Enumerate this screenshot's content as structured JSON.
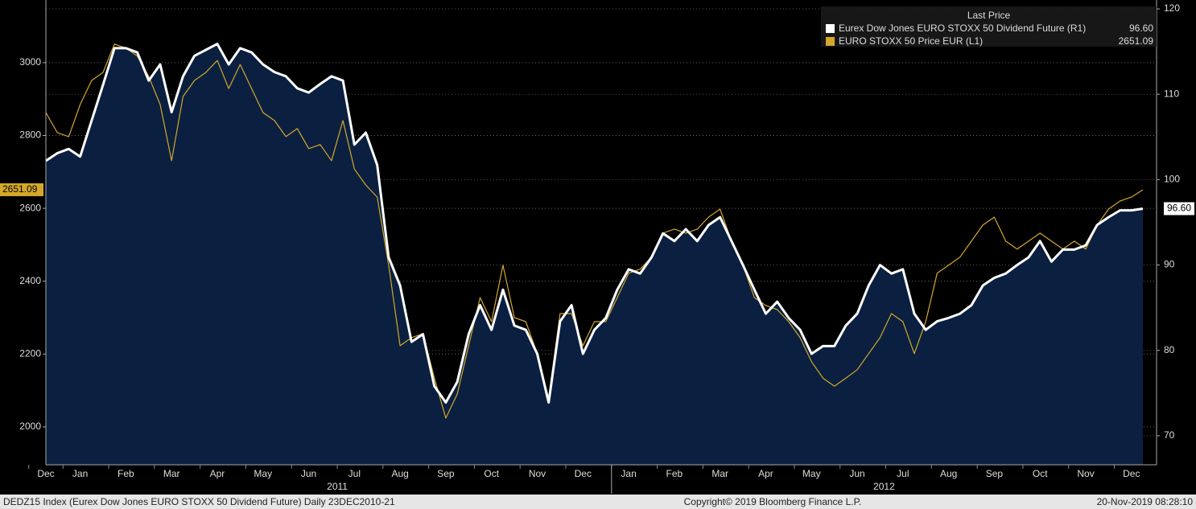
{
  "chart_data": {
    "type": "line",
    "legend_title": "Last Price",
    "legend_position": "top-right",
    "area_fill": "#0b2040",
    "categories": [
      "Dec",
      null,
      null,
      "Jan",
      null,
      null,
      null,
      "Feb",
      null,
      null,
      null,
      "Mar",
      null,
      null,
      null,
      "Apr",
      null,
      null,
      null,
      "May",
      null,
      null,
      null,
      "Jun",
      null,
      null,
      null,
      "Jul",
      null,
      null,
      null,
      "Aug",
      null,
      null,
      null,
      "Sep",
      null,
      null,
      null,
      "Oct",
      null,
      null,
      null,
      "Nov",
      null,
      null,
      null,
      "Dec",
      null,
      null,
      null,
      "Jan",
      null,
      null,
      null,
      "Feb",
      null,
      null,
      null,
      "Mar",
      null,
      null,
      null,
      "Apr",
      null,
      null,
      null,
      "May",
      null,
      null,
      null,
      "Jun",
      null,
      null,
      null,
      "Jul",
      null,
      null,
      null,
      "Aug",
      null,
      null,
      null,
      "Sep",
      null,
      null,
      null,
      "Oct",
      null,
      null,
      null,
      "Nov",
      null,
      null,
      null,
      "Dec",
      null
    ],
    "year_labels": [
      "2011",
      "2012"
    ],
    "series": [
      {
        "name": "Eurex Dow Jones EURO STOXX 50 Dividend Future  (R1)",
        "color": "#ffffff",
        "axis": "y2",
        "area": true,
        "values": [
          102.2,
          103.1,
          103.6,
          102.7,
          106.9,
          111.1,
          115.4,
          115.4,
          114.9,
          111.6,
          113.5,
          107.9,
          112.1,
          114.5,
          115.2,
          115.9,
          113.5,
          115.4,
          114.9,
          113.5,
          112.6,
          112.1,
          110.7,
          110.2,
          111.2,
          112.1,
          111.6,
          104.1,
          105.5,
          101.7,
          90.9,
          87.6,
          81.0,
          81.9,
          75.8,
          73.9,
          76.3,
          81.9,
          85.3,
          82.4,
          87.1,
          82.9,
          82.4,
          79.6,
          73.9,
          83.4,
          85.3,
          79.6,
          82.4,
          83.8,
          87.1,
          89.5,
          89.0,
          90.9,
          93.7,
          92.8,
          94.2,
          92.8,
          94.7,
          95.6,
          92.8,
          90.0,
          87.1,
          84.3,
          85.7,
          83.8,
          82.4,
          79.6,
          80.5,
          80.5,
          82.9,
          84.3,
          87.6,
          90.0,
          89.0,
          89.5,
          84.3,
          82.4,
          83.4,
          83.8,
          84.3,
          85.3,
          87.6,
          88.5,
          89.0,
          90.0,
          90.9,
          92.8,
          90.4,
          91.8,
          91.8,
          92.3,
          94.7,
          95.6,
          96.4,
          96.4,
          96.6
        ],
        "value_labels": {
          "96": "96.60"
        }
      },
      {
        "name": "EURO STOXX 50 Price EUR  (L1)",
        "color": "#d4a82a",
        "axis": "y",
        "values": [
          2863,
          2808,
          2797,
          2885,
          2951,
          2973,
          3051,
          3040,
          3018,
          2962,
          2885,
          2731,
          2907,
          2951,
          2973,
          3006,
          2929,
          2995,
          2929,
          2863,
          2841,
          2797,
          2819,
          2764,
          2775,
          2731,
          2841,
          2708,
          2664,
          2631,
          2444,
          2223,
          2245,
          2256,
          2134,
          2024,
          2090,
          2223,
          2355,
          2289,
          2444,
          2300,
          2289,
          2201,
          2079,
          2311,
          2311,
          2223,
          2289,
          2289,
          2355,
          2422,
          2433,
          2466,
          2532,
          2543,
          2532,
          2543,
          2576,
          2598,
          2510,
          2444,
          2355,
          2333,
          2322,
          2289,
          2245,
          2179,
          2134,
          2112,
          2134,
          2157,
          2201,
          2245,
          2311,
          2289,
          2201,
          2289,
          2422,
          2444,
          2466,
          2510,
          2554,
          2576,
          2510,
          2488,
          2510,
          2532,
          2510,
          2488,
          2510,
          2488,
          2554,
          2598,
          2620,
          2631,
          2651.09
        ]
      }
    ],
    "ylim": [
      1896,
      3172
    ],
    "yticks": [
      2000,
      2200,
      2400,
      2600,
      2800,
      3000
    ],
    "y2lim": [
      66.6,
      121.04
    ],
    "y2ticks": [
      70,
      80,
      90,
      100,
      110,
      120
    ],
    "grid": true,
    "footer_left": "DEDZ15 Index (Eurex Dow Jones EURO STOXX 50 Dividend Future)  Daily 23DEC2010-21",
    "footer_center": "Copyright© 2019 Bloomberg Finance L.P.",
    "footer_right": "20-Nov-2019 08:28:10"
  }
}
